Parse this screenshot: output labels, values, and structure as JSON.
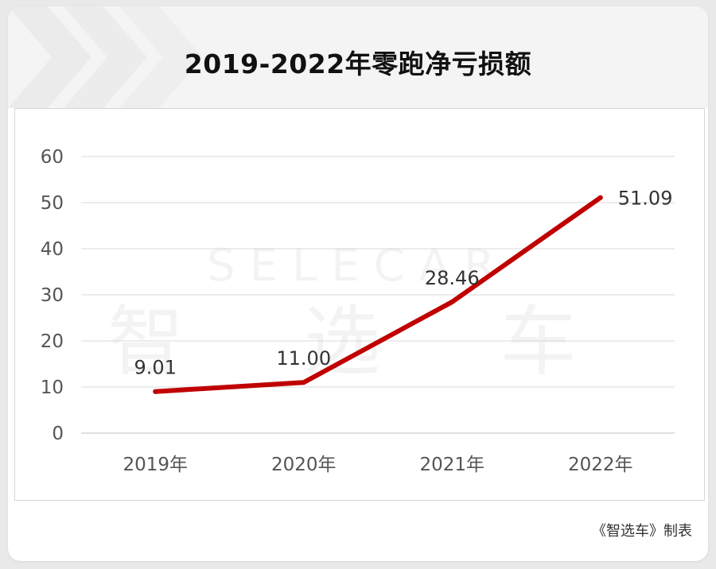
{
  "title": "2019-2022年零跑净亏损额",
  "footer": "《智选车》制表",
  "watermark": {
    "text": "智 选 车",
    "logo": "SELECAR"
  },
  "colors": {
    "line": "#c00000",
    "grid": "#d9d9d9",
    "header_bg": "#f4f4f4"
  },
  "chart_data": {
    "type": "line",
    "title": "2019-2022年零跑净亏损额",
    "categories": [
      "2019年",
      "2020年",
      "2021年",
      "2022年"
    ],
    "series": [
      {
        "values": [
          9.01,
          11.0,
          28.46,
          51.09
        ],
        "labels": [
          "9.01",
          "11.00",
          "28.46",
          "51.09"
        ],
        "color": "#c00000"
      }
    ],
    "y_ticks": [
      "0",
      "10",
      "20",
      "30",
      "40",
      "50",
      "60"
    ],
    "ylim": [
      0,
      60
    ],
    "grid": true,
    "legend": "none"
  }
}
